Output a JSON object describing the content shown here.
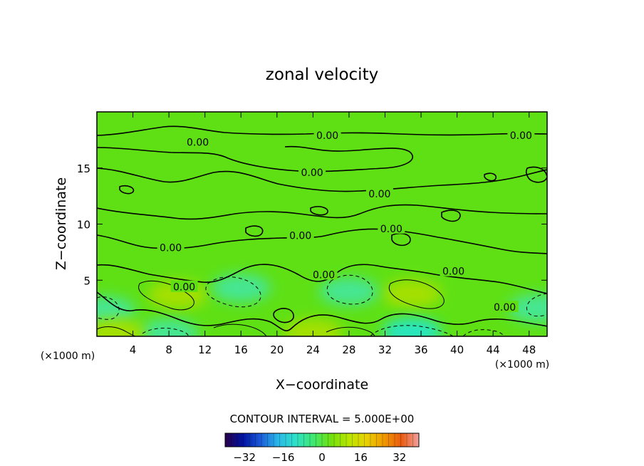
{
  "chart_data": {
    "type": "heatmap",
    "title": "zonal velocity",
    "xlabel": "X−coordinate",
    "ylabel": "Z−coordinate",
    "x_unit_left": "(×1000 m)",
    "x_unit_right": "(×1000 m)",
    "xlim": [
      0,
      50
    ],
    "ylim": [
      0,
      20
    ],
    "x_ticks": [
      4,
      8,
      12,
      16,
      20,
      24,
      28,
      32,
      36,
      40,
      44,
      48
    ],
    "y_ticks": [
      5,
      10,
      15
    ],
    "contour_interval_text": "CONTOUR INTERVAL = 5.000E+00",
    "contour_label": "0.00",
    "contour_label_positions": [
      {
        "x": 11.2,
        "z": 17.3
      },
      {
        "x": 25.6,
        "z": 17.9
      },
      {
        "x": 47.1,
        "z": 17.9
      },
      {
        "x": 23.9,
        "z": 14.6
      },
      {
        "x": 31.4,
        "z": 12.7
      },
      {
        "x": 22.6,
        "z": 9.0
      },
      {
        "x": 32.7,
        "z": 9.6
      },
      {
        "x": 8.2,
        "z": 7.9
      },
      {
        "x": 25.2,
        "z": 5.5
      },
      {
        "x": 39.6,
        "z": 5.8
      },
      {
        "x": 9.7,
        "z": 4.4
      },
      {
        "x": 45.3,
        "z": 2.6
      }
    ],
    "colorbar": {
      "range": [
        -40,
        40
      ],
      "tick_values": [
        -32,
        -16,
        0,
        16,
        32
      ],
      "tick_labels": [
        "−32",
        "−16",
        "0",
        "16",
        "32"
      ],
      "colors": [
        "#2a004a",
        "#0012a0",
        "#1a5ad8",
        "#2ab8e8",
        "#2ee0c8",
        "#3ee870",
        "#70e010",
        "#b8e600",
        "#e8d200",
        "#f09a00",
        "#ea5a10",
        "#f0a0a0"
      ]
    },
    "field_summary": {
      "background_value": 0,
      "features": [
        {
          "kind": "positive",
          "x": 9,
          "z": 3.7,
          "value": 6
        },
        {
          "kind": "positive",
          "x": 35,
          "z": 3.8,
          "value": 6
        },
        {
          "kind": "negative",
          "x": 16,
          "z": 4.3,
          "value": -6
        },
        {
          "kind": "negative",
          "x": 28,
          "z": 4.0,
          "value": -6
        },
        {
          "kind": "negative",
          "x": 1,
          "z": 2.3,
          "value": -8
        },
        {
          "kind": "negative",
          "x": 49,
          "z": 2.5,
          "value": -8
        },
        {
          "kind": "negative",
          "x": 8,
          "z": 0.3,
          "value": -5
        },
        {
          "kind": "negative",
          "x": 35,
          "z": 0.4,
          "value": -10
        },
        {
          "kind": "positive",
          "x": 24,
          "z": 0.3,
          "value": 5
        },
        {
          "kind": "positive",
          "x": 2,
          "z": 0.3,
          "value": 5
        }
      ]
    }
  }
}
